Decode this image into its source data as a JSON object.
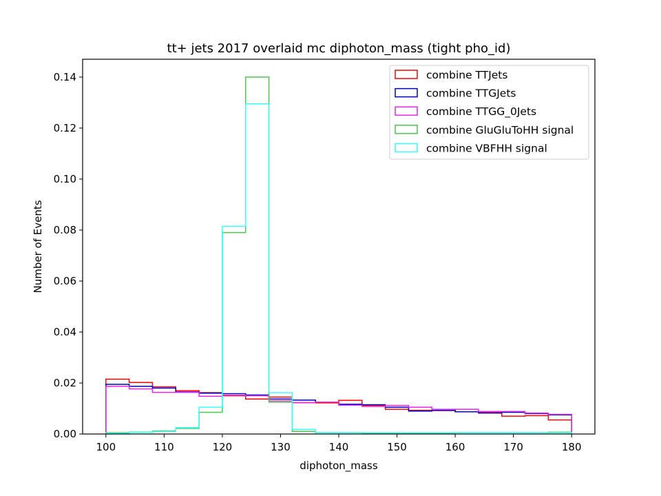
{
  "chart_data": {
    "type": "step-histogram",
    "title": "tt+ jets 2017 overlaid mc diphoton_mass (tight pho_id)",
    "xlabel": "diphoton_mass",
    "ylabel": "Number of Events",
    "xlim": [
      96,
      184
    ],
    "ylim": [
      0,
      0.147
    ],
    "xticks": [
      100,
      110,
      120,
      130,
      140,
      150,
      160,
      170,
      180
    ],
    "xtick_labels": [
      "100",
      "110",
      "120",
      "130",
      "140",
      "150",
      "160",
      "170",
      "180"
    ],
    "yticks": [
      0,
      0.02,
      0.04,
      0.06,
      0.08,
      0.1,
      0.12,
      0.14
    ],
    "ytick_labels": [
      "0.00",
      "0.02",
      "0.04",
      "0.06",
      "0.08",
      "0.10",
      "0.12",
      "0.14"
    ],
    "bin_edges": [
      100,
      104,
      108,
      112,
      116,
      120,
      124,
      128,
      132,
      136,
      140,
      144,
      148,
      152,
      156,
      160,
      164,
      168,
      172,
      176,
      180
    ],
    "legend_location": "upper right",
    "series": [
      {
        "name": "combine TTJets",
        "color": "#ff0000",
        "values": [
          0.0215,
          0.0202,
          0.0185,
          0.017,
          0.0162,
          0.015,
          0.0137,
          0.0145,
          0.0123,
          0.0122,
          0.0132,
          0.0112,
          0.0097,
          0.0093,
          0.0092,
          0.0087,
          0.0085,
          0.007,
          0.0072,
          0.0055
        ]
      },
      {
        "name": "combine TTGJets",
        "color": "#0000cc",
        "values": [
          0.0195,
          0.0187,
          0.018,
          0.0165,
          0.016,
          0.0158,
          0.0153,
          0.0137,
          0.0133,
          0.0125,
          0.0117,
          0.0115,
          0.0105,
          0.009,
          0.0093,
          0.0087,
          0.0082,
          0.0085,
          0.008,
          0.0075
        ]
      },
      {
        "name": "combine TTGG_0Jets",
        "color": "#ee22ee",
        "values": [
          0.0187,
          0.0177,
          0.0163,
          0.0163,
          0.0148,
          0.0152,
          0.015,
          0.013,
          0.0123,
          0.0125,
          0.0113,
          0.0108,
          0.0112,
          0.0105,
          0.0097,
          0.0097,
          0.0088,
          0.0088,
          0.0082,
          0.0077
        ]
      },
      {
        "name": "combine GluGluToHH signal",
        "color": "#44cc44",
        "values": [
          0.0005,
          0.0007,
          0.0012,
          0.0022,
          0.0085,
          0.079,
          0.14,
          0.0125,
          0.001,
          0.0005,
          0.0005,
          0.0004,
          0.0004,
          0.0004,
          0.0004,
          0.0005,
          0.0005,
          0.0005,
          0.0005,
          0.0007
        ]
      },
      {
        "name": "combine VBFHH signal",
        "color": "#33ffff",
        "values": [
          0.0003,
          0.0006,
          0.001,
          0.0025,
          0.0105,
          0.0815,
          0.1295,
          0.0162,
          0.0018,
          0.0005,
          0.0005,
          0.0005,
          0.0005,
          0.0005,
          0.0005,
          0.0005,
          0.0005,
          0.0005,
          0.0005,
          0.0005
        ]
      }
    ]
  }
}
